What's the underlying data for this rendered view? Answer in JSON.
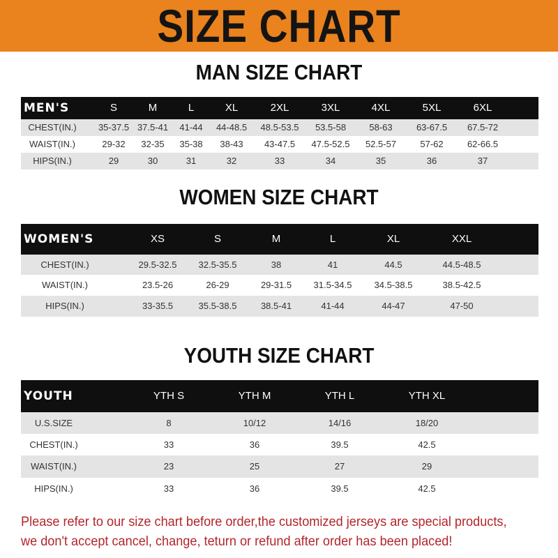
{
  "banner": {
    "title": "SIZE CHART",
    "color": "#ea821d"
  },
  "men": {
    "title": "MAN SIZE CHART",
    "header": [
      "MEN'S",
      "S",
      "M",
      "L",
      "XL",
      "2XL",
      "3XL",
      "4XL",
      "5XL",
      "6XL"
    ],
    "rows": [
      [
        "CHEST(IN.)",
        "35-37.5",
        "37.5-41",
        "41-44",
        "44-48.5",
        "48.5-53.5",
        "53.5-58",
        "58-63",
        "63-67.5",
        "67.5-72"
      ],
      [
        "WAIST(IN.)",
        "29-32",
        "32-35",
        "35-38",
        "38-43",
        "43-47.5",
        "47.5-52.5",
        "52.5-57",
        "57-62",
        "62-66.5"
      ],
      [
        "HIPS(IN.)",
        "29",
        "30",
        "31",
        "32",
        "33",
        "34",
        "35",
        "36",
        "37"
      ]
    ]
  },
  "women": {
    "title": "WOMEN SIZE CHART",
    "header": [
      "WOMEN'S",
      "XS",
      "S",
      "M",
      "L",
      "XL",
      "XXL"
    ],
    "rows": [
      [
        "CHEST(IN.)",
        "29.5-32.5",
        "32.5-35.5",
        "38",
        "41",
        "44.5",
        "44.5-48.5"
      ],
      [
        "WAIST(IN.)",
        "23.5-26",
        "26-29",
        "29-31.5",
        "31.5-34.5",
        "34.5-38.5",
        "38.5-42.5"
      ],
      [
        "HIPS(IN.)",
        "33-35.5",
        "35.5-38.5",
        "38.5-41",
        "41-44",
        "44-47",
        "47-50"
      ]
    ]
  },
  "youth": {
    "title": "YOUTH SIZE CHART",
    "header": [
      "YOUTH",
      "YTH S",
      "YTH M",
      "YTH L",
      "YTH XL"
    ],
    "rows": [
      [
        "U.S.SIZE",
        "8",
        "10/12",
        "14/16",
        "18/20"
      ],
      [
        "CHEST(IN.)",
        "33",
        "36",
        "39.5",
        "42.5"
      ],
      [
        "WAIST(IN.)",
        "23",
        "25",
        "27",
        "29"
      ],
      [
        "HIPS(IN.)",
        "33",
        "36",
        "39.5",
        "42.5"
      ]
    ]
  },
  "footer": {
    "line1": "Please refer to our size chart before order,the customized jerseys are special products,",
    "line2": "we don't accept cancel, change, teturn or refund after order has been placed!"
  }
}
